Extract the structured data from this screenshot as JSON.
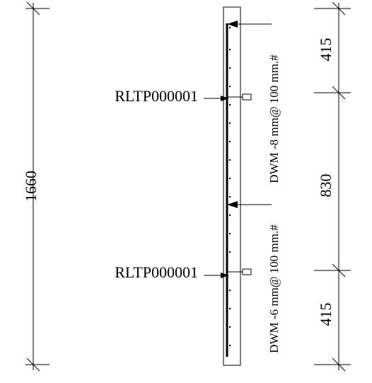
{
  "dimensions": {
    "overall": "1660",
    "top": "415",
    "middle": "830",
    "bottom": "415"
  },
  "labels": {
    "tie_point_upper": "RLTP000001",
    "tie_point_lower": "RLTP000001"
  },
  "notes": {
    "mesh_upper": "DWM -8 mm@ 100 mm.#",
    "mesh_lower": "DWM -6 mm@ 100 mm.#"
  }
}
